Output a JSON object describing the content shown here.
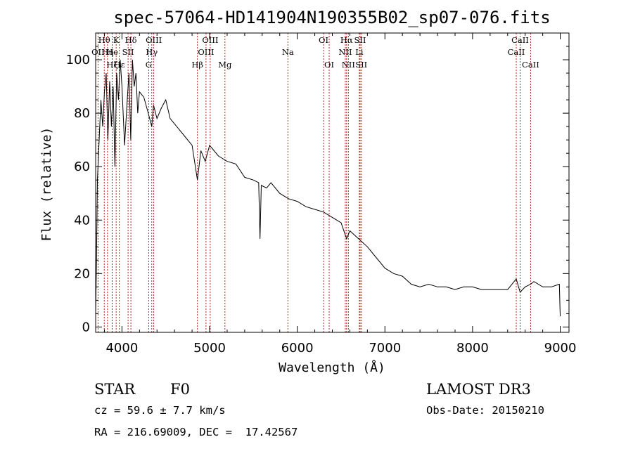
{
  "chart_data": {
    "type": "line",
    "title": "spec-57064-HD141904N190355B02_sp07-076.fits",
    "xlabel": "Wavelength (Å)",
    "ylabel": "Flux (relative)",
    "xlim": [
      3700,
      9100
    ],
    "ylim": [
      -2,
      110
    ],
    "xticks": [
      4000,
      5000,
      6000,
      7000,
      8000,
      9000
    ],
    "yticks": [
      0,
      20,
      40,
      60,
      80,
      100
    ],
    "series": [
      {
        "name": "spectrum",
        "x": [
          3700,
          3710,
          3720,
          3740,
          3760,
          3780,
          3800,
          3820,
          3840,
          3860,
          3880,
          3900,
          3920,
          3940,
          3960,
          3980,
          4000,
          4030,
          4060,
          4080,
          4100,
          4120,
          4140,
          4160,
          4180,
          4200,
          4250,
          4300,
          4340,
          4360,
          4400,
          4450,
          4500,
          4550,
          4600,
          4700,
          4800,
          4861,
          4900,
          4950,
          5000,
          5100,
          5200,
          5300,
          5400,
          5500,
          5560,
          5575,
          5590,
          5650,
          5700,
          5800,
          5900,
          6000,
          6100,
          6200,
          6300,
          6400,
          6500,
          6563,
          6600,
          6700,
          6800,
          6900,
          7000,
          7100,
          7200,
          7300,
          7400,
          7500,
          7600,
          7700,
          7800,
          7900,
          8000,
          8100,
          8200,
          8300,
          8400,
          8498,
          8542,
          8600,
          8662,
          8700,
          8800,
          8900,
          8990,
          9000
        ],
        "y": [
          5,
          25,
          55,
          70,
          85,
          75,
          88,
          95,
          70,
          92,
          75,
          90,
          60,
          95,
          85,
          100,
          90,
          68,
          85,
          95,
          70,
          100,
          90,
          95,
          80,
          88,
          86,
          80,
          75,
          83,
          78,
          82,
          85,
          78,
          76,
          72,
          68,
          55,
          66,
          62,
          68,
          64,
          62,
          61,
          56,
          55,
          54,
          33,
          53,
          52,
          54,
          50,
          48,
          47,
          45,
          44,
          43,
          41,
          39,
          33,
          36,
          33,
          30,
          26,
          22,
          20,
          19,
          16,
          15,
          16,
          15,
          15,
          14,
          15,
          15,
          14,
          14,
          14,
          14,
          18,
          13,
          15,
          16,
          17,
          15,
          15,
          16,
          4
        ]
      }
    ],
    "line_markers": [
      {
        "label": "Hθ",
        "wavelength": 3798,
        "row": 1
      },
      {
        "label": "K",
        "wavelength": 3934,
        "row": 1
      },
      {
        "label": "Hδ",
        "wavelength": 4102,
        "row": 1
      },
      {
        "label": "OIII",
        "wavelength": 4363,
        "row": 1
      },
      {
        "label": "OIII",
        "wavelength": 5007,
        "row": 1
      },
      {
        "label": "OI",
        "wavelength": 6300,
        "row": 1
      },
      {
        "label": "Hα",
        "wavelength": 6563,
        "row": 1
      },
      {
        "label": "SII",
        "wavelength": 6717,
        "row": 1
      },
      {
        "label": "CaII",
        "wavelength": 8542,
        "row": 1
      },
      {
        "label": "OII",
        "wavelength": 3727,
        "row": 2
      },
      {
        "label": "Hη",
        "wavelength": 3835,
        "row": 2
      },
      {
        "label": "He",
        "wavelength": 3889,
        "row": 2
      },
      {
        "label": "SII",
        "wavelength": 4070,
        "row": 2
      },
      {
        "label": "Hγ",
        "wavelength": 4340,
        "row": 2
      },
      {
        "label": "OIII",
        "wavelength": 4959,
        "row": 2
      },
      {
        "label": "Na",
        "wavelength": 5893,
        "row": 2
      },
      {
        "label": "NII",
        "wavelength": 6548,
        "row": 2
      },
      {
        "label": "Li",
        "wavelength": 6708,
        "row": 2
      },
      {
        "label": "CaII",
        "wavelength": 8498,
        "row": 2
      },
      {
        "label": "Hζ",
        "wavelength": 3889,
        "row": 3
      },
      {
        "label": "Hε",
        "wavelength": 3970,
        "row": 3
      },
      {
        "label": "G",
        "wavelength": 4305,
        "row": 3
      },
      {
        "label": "Hβ",
        "wavelength": 4861,
        "row": 3
      },
      {
        "label": "Mg",
        "wavelength": 5175,
        "row": 3
      },
      {
        "label": "OI",
        "wavelength": 6364,
        "row": 3
      },
      {
        "label": "NII",
        "wavelength": 6583,
        "row": 3
      },
      {
        "label": "SII",
        "wavelength": 6731,
        "row": 3
      },
      {
        "label": "CaII",
        "wavelength": 8662,
        "row": 3
      }
    ]
  },
  "info": {
    "class": "STAR",
    "subclass": "F0",
    "survey": "LAMOST DR3",
    "cz": "cz = 59.6 ± 7.7 km/s",
    "obs_date": "Obs-Date: 20150210",
    "radec": "RA = 216.69009, DEC =  17.42567"
  },
  "colors": {
    "axis": "#000000",
    "spectrum": "#000000",
    "marker": "#cc0000"
  }
}
